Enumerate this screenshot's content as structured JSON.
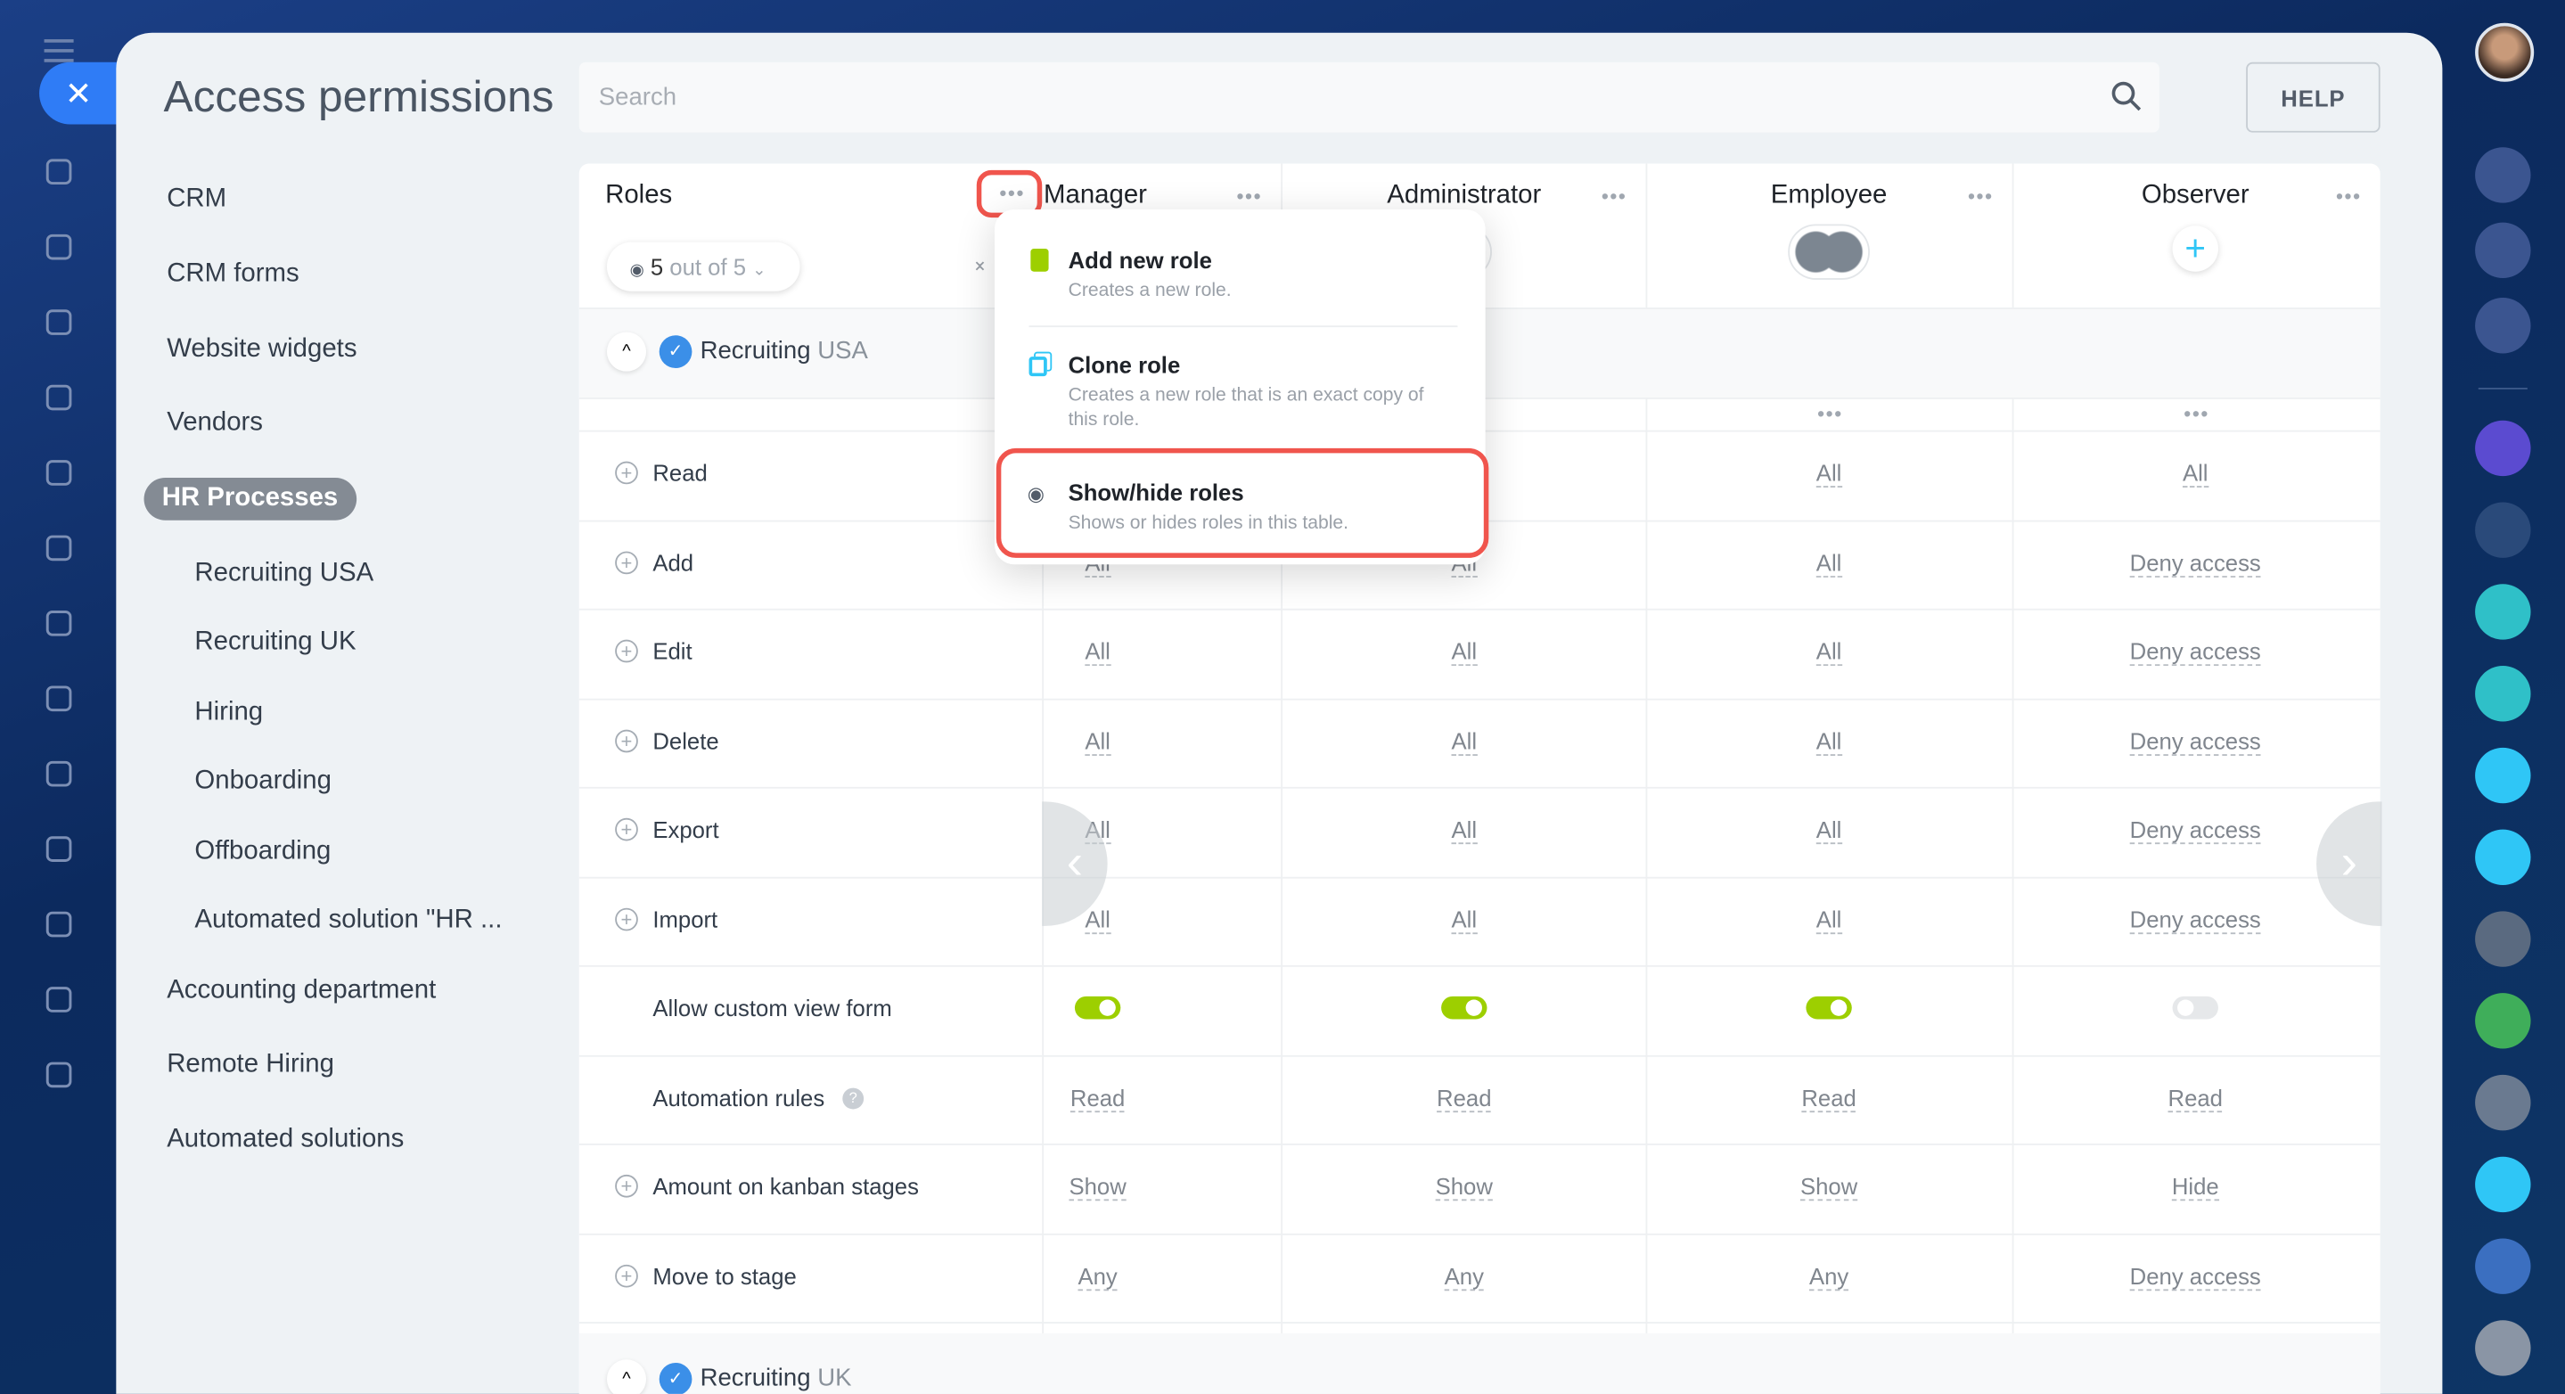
{
  "page": {
    "title": "Access permissions",
    "close_icon": "close-icon"
  },
  "search": {
    "placeholder": "Search",
    "value": ""
  },
  "help": {
    "label": "HELP"
  },
  "nav": [
    {
      "label": "CRM",
      "level": 0
    },
    {
      "label": "CRM forms",
      "level": 0
    },
    {
      "label": "Website widgets",
      "level": 0
    },
    {
      "label": "Vendors",
      "level": 0
    },
    {
      "label": "HR Processes",
      "level": 0,
      "selected": true
    },
    {
      "label": "Recruiting USA",
      "level": 1
    },
    {
      "label": "Recruiting UK",
      "level": 1
    },
    {
      "label": "Hiring",
      "level": 1
    },
    {
      "label": "Onboarding",
      "level": 1
    },
    {
      "label": "Offboarding",
      "level": 1
    },
    {
      "label": "Automated solution \"HR ...",
      "level": 1
    },
    {
      "label": "Accounting department",
      "level": 0
    },
    {
      "label": "Remote Hiring",
      "level": 0
    },
    {
      "label": "Automated solutions",
      "level": 0
    }
  ],
  "table": {
    "roles_label": "Roles",
    "filter": {
      "count": "5",
      "suffix": "out of 5"
    },
    "columns": [
      "Manager",
      "Administrator",
      "Employee",
      "Observer"
    ],
    "group": {
      "name_prefix": "Recruiting",
      "name_suffix": "USA"
    },
    "group2": {
      "name_prefix": "Recruiting",
      "name_suffix": "UK"
    },
    "rows": [
      {
        "label": "Read",
        "expandable": true,
        "values": [
          "",
          "",
          "All",
          "All"
        ]
      },
      {
        "label": "Add",
        "expandable": true,
        "values": [
          "All",
          "All",
          "All",
          "Deny access"
        ]
      },
      {
        "label": "Edit",
        "expandable": true,
        "values": [
          "All",
          "All",
          "All",
          "Deny access"
        ]
      },
      {
        "label": "Delete",
        "expandable": true,
        "values": [
          "All",
          "All",
          "All",
          "Deny access"
        ]
      },
      {
        "label": "Export",
        "expandable": true,
        "values": [
          "All",
          "All",
          "All",
          "Deny access"
        ]
      },
      {
        "label": "Import",
        "expandable": true,
        "values": [
          "All",
          "All",
          "All",
          "Deny access"
        ]
      },
      {
        "label": "Allow custom view form",
        "expandable": false,
        "toggles": [
          true,
          true,
          true,
          false
        ]
      },
      {
        "label": "Automation rules",
        "expandable": false,
        "help": true,
        "values": [
          "Read",
          "Read",
          "Read",
          "Read"
        ]
      },
      {
        "label": "Amount on kanban stages",
        "expandable": true,
        "values": [
          "Show",
          "Show",
          "Show",
          "Hide"
        ]
      },
      {
        "label": "Move to stage",
        "expandable": true,
        "values": [
          "Any",
          "Any",
          "Any",
          "Deny access"
        ]
      }
    ]
  },
  "menu": {
    "items": [
      {
        "title": "Add new role",
        "desc": "Creates a new role.",
        "icon": "add-role-icon",
        "color": "#9dcf00"
      },
      {
        "title": "Clone role",
        "desc": "Creates a new role that is an exact copy of this role.",
        "icon": "clone-icon",
        "color": "#2fc6f6"
      },
      {
        "title": "Show/hide roles",
        "desc": "Shows or hides roles in this table.",
        "icon": "eye-icon",
        "color": "#525c69",
        "highlighted": true
      }
    ]
  },
  "colors": {
    "accent": "#2f7cf6",
    "highlight": "#f0554d",
    "toggle_on": "#9dcf00"
  }
}
